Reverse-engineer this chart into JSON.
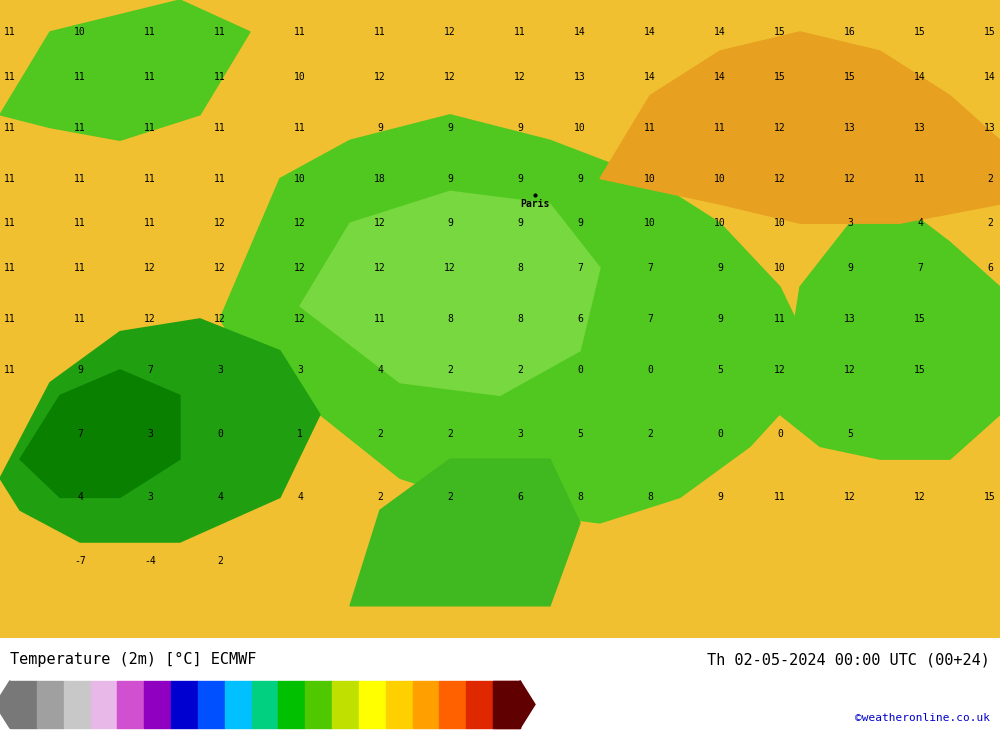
{
  "title_left": "Temperature (2m) [°C] ECMWF",
  "title_right": "Th 02-05-2024 00:00 UTC (00+24)",
  "credit": "©weatheronline.co.uk",
  "colorbar_levels": [
    -28,
    -22,
    -10,
    0,
    12,
    26,
    38,
    48
  ],
  "colorbar_colors": [
    "#6e6e6e",
    "#a0a0a0",
    "#c8c8c8",
    "#e0b0e0",
    "#d060d0",
    "#9000c8",
    "#0000e0",
    "#0064ff",
    "#00c8ff",
    "#00e0a0",
    "#00c800",
    "#64d200",
    "#c8e600",
    "#ffff00",
    "#ffd200",
    "#ffa000",
    "#ff6400",
    "#e03200",
    "#b40000",
    "#780000"
  ],
  "background_color": "#ffffff",
  "map_bg_yellow": "#f5c842",
  "map_bg_green": "#7dc832",
  "map_bg_orange": "#e8a020",
  "fig_width": 10.0,
  "fig_height": 7.33,
  "bottom_bar_height": 0.1
}
